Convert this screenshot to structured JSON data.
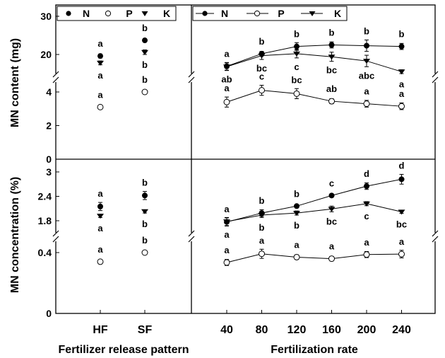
{
  "labels": {
    "ylabel_top": "MN content (mg)",
    "ylabel_bottom": "MN concentration (%)",
    "xlabel_left": "Fertilizer release pattern",
    "xlabel_right": "Fertilization rate"
  },
  "legend": {
    "n": "N",
    "p": "P",
    "k": "K"
  },
  "colors": {
    "ink": "#000000",
    "open_fill": "#ffffff"
  },
  "chart_data": [
    {
      "id": "content-pattern",
      "type": "scatter",
      "ylabel": "MN content (mg)",
      "categories": [
        "HF",
        "SF"
      ],
      "y_ticks_upper": [
        20,
        30
      ],
      "y_ticks_lower": [
        0,
        2,
        4
      ],
      "axis_break": true,
      "series": [
        {
          "name": "N",
          "marker": "filled-circle",
          "values": [
            19.6,
            23.7
          ],
          "err": [
            0.5,
            0.4
          ],
          "letters": [
            "a",
            "b"
          ]
        },
        {
          "name": "P",
          "marker": "open-circle",
          "values": [
            3.1,
            4.0
          ],
          "err": [
            0.08,
            0.12
          ],
          "letters": [
            "a",
            "b"
          ]
        },
        {
          "name": "K",
          "marker": "filled-triangle",
          "values": [
            17.8,
            20.6
          ],
          "err": [
            0.5,
            0.6
          ],
          "letters": [
            "a",
            "b"
          ]
        }
      ]
    },
    {
      "id": "content-rate",
      "type": "line",
      "ylabel": "MN content (mg)",
      "x": [
        40,
        80,
        120,
        160,
        200,
        240
      ],
      "axis_break": true,
      "series": [
        {
          "name": "N",
          "marker": "filled-circle",
          "values": [
            16.9,
            20.2,
            22.1,
            22.5,
            22.3,
            22.1
          ],
          "err": [
            1.0,
            0.6,
            1.0,
            0.8,
            1.5,
            0.8
          ],
          "letters": [
            "a",
            "b",
            "b",
            "b",
            "b",
            "b"
          ]
        },
        {
          "name": "P",
          "marker": "open-circle",
          "values": [
            3.4,
            4.1,
            3.9,
            3.45,
            3.3,
            3.15
          ],
          "err": [
            0.3,
            0.3,
            0.3,
            0.15,
            0.2,
            0.2
          ],
          "letters": [
            "a",
            "c",
            "bc",
            "ab",
            "a",
            "a"
          ]
        },
        {
          "name": "K",
          "marker": "filled-triangle",
          "values": [
            16.8,
            19.7,
            20.2,
            19.4,
            18.3,
            15.5
          ],
          "err": [
            1.0,
            1.0,
            1.1,
            1.2,
            1.5,
            0.5
          ],
          "letters": [
            "ab",
            "bc",
            "c",
            "bc",
            "abc",
            "a"
          ]
        }
      ]
    },
    {
      "id": "concentration-pattern",
      "type": "scatter",
      "ylabel": "MN concentration (%)",
      "categories": [
        "HF",
        "SF"
      ],
      "y_ticks_upper": [
        1.8,
        2.4,
        3.0
      ],
      "y_ticks_lower": [
        0,
        0.4
      ],
      "axis_break": true,
      "series": [
        {
          "name": "N",
          "marker": "filled-circle",
          "values": [
            2.15,
            2.42
          ],
          "err": [
            0.1,
            0.1
          ],
          "letters": [
            "a",
            "b"
          ]
        },
        {
          "name": "P",
          "marker": "open-circle",
          "values": [
            0.34,
            0.4
          ],
          "err": [
            0.01,
            0.01
          ],
          "letters": [
            "a",
            "b"
          ]
        },
        {
          "name": "K",
          "marker": "filled-triangle",
          "values": [
            1.92,
            2.03
          ],
          "err": [
            0.04,
            0.04
          ],
          "letters": [
            "a",
            "b"
          ]
        }
      ]
    },
    {
      "id": "concentration-rate",
      "type": "line",
      "ylabel": "MN concentration (%)",
      "x": [
        40,
        80,
        120,
        160,
        200,
        240
      ],
      "axis_break": true,
      "series": [
        {
          "name": "N",
          "marker": "filled-circle",
          "values": [
            1.77,
            1.99,
            2.16,
            2.42,
            2.65,
            2.82
          ],
          "err": [
            0.1,
            0.08,
            0.04,
            0.04,
            0.08,
            0.12
          ],
          "letters": [
            "a",
            "b",
            "b",
            "c",
            "d",
            "d"
          ]
        },
        {
          "name": "P",
          "marker": "open-circle",
          "values": [
            0.335,
            0.392,
            0.37,
            0.36,
            0.387,
            0.39
          ],
          "err": [
            0.02,
            0.03,
            0.015,
            0.015,
            0.02,
            0.025
          ],
          "letters": [
            "a",
            "a",
            "a",
            "a",
            "a",
            "a"
          ]
        },
        {
          "name": "K",
          "marker": "filled-triangle",
          "values": [
            1.78,
            1.94,
            1.99,
            2.09,
            2.22,
            2.02
          ],
          "err": [
            0.1,
            0.06,
            0.05,
            0.07,
            0.05,
            0.04
          ],
          "letters": [
            "a",
            "b",
            "b",
            "bc",
            "c",
            "bc"
          ]
        }
      ]
    }
  ]
}
